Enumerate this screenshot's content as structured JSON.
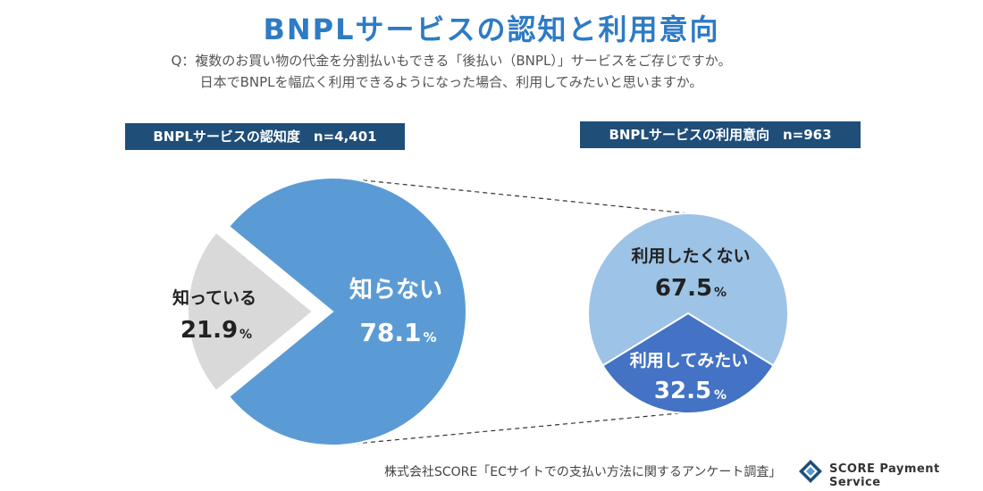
{
  "title": "BNPLサービスの認知と利用意向",
  "question": {
    "line1": "Q：複数のお買い物の代金を分割払いもできる「後払い（BNPL）」サービスをご存じですか。",
    "line2": "日本でBNPLを幅広く利用できるようになった場合、利用してみたいと思いますか。"
  },
  "colors": {
    "title": "#2e7bc4",
    "label_bg": "#1f4e79",
    "unknown": "#5b9bd5",
    "known": "#d9d9d9",
    "not_want": "#9dc3e6",
    "want": "#4472c4"
  },
  "chart_data": [
    {
      "type": "pie",
      "title": "BNPLサービスの認知度　n=4,401",
      "unit": "%",
      "slices": [
        {
          "label": "知らない",
          "value": 78.1,
          "value_text": "78.1"
        },
        {
          "label": "知っている",
          "value": 21.9,
          "value_text": "21.9",
          "exploded": true
        }
      ]
    },
    {
      "type": "pie",
      "title": "BNPLサービスの利用意向　n=963",
      "unit": "%",
      "slices": [
        {
          "label": "利用したくない",
          "value": 67.5,
          "value_text": "67.5"
        },
        {
          "label": "利用してみたい",
          "value": 32.5,
          "value_text": "32.5"
        }
      ]
    }
  ],
  "footer": {
    "source": "株式会社SCORE「ECサイトでの支払い方法に関するアンケート調査」",
    "logo_text": "SCORE  Payment Service"
  }
}
